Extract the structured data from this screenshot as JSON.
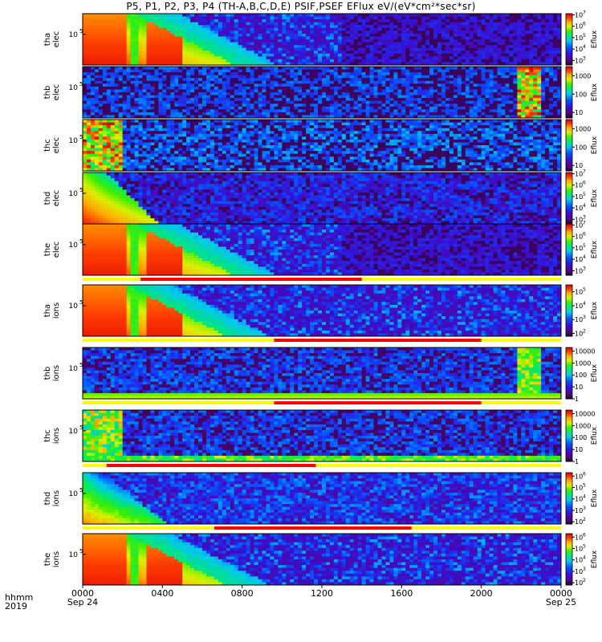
{
  "chart_data": {
    "type": "heatmap",
    "title": "P5, P1, P2, P3, P4 (TH-A,B,C,D,E) PSIF,PSEF EFlux eV/(eV*cm²*sec*sr)",
    "x_ticks": [
      {
        "label": "0000",
        "date": "Sep 24",
        "hour": 0
      },
      {
        "label": "0400",
        "date": "",
        "hour": 4
      },
      {
        "label": "0800",
        "date": "",
        "hour": 8
      },
      {
        "label": "1200",
        "date": "",
        "hour": 12
      },
      {
        "label": "1600",
        "date": "",
        "hour": 16
      },
      {
        "label": "2000",
        "date": "",
        "hour": 20
      },
      {
        "label": "0000",
        "date": "Sep 25",
        "hour": 24
      }
    ],
    "x_range_hours": [
      0,
      24
    ],
    "footer": {
      "hhmm": "hhmm",
      "year": "2019"
    },
    "colorbar_label": "Eflux",
    "panels": [
      {
        "probe": "tha",
        "species": "elec",
        "ytick": "5",
        "cb_ticks": [
          "3",
          "4",
          "5",
          "6",
          "7"
        ],
        "cb_range": [
          2.6,
          7.1
        ],
        "profile": "elec_full"
      },
      {
        "probe": "thb",
        "species": "elec",
        "ytick": "5",
        "cb_ticks": [
          "10",
          "100",
          "1000"
        ],
        "cb_range": [
          0.7,
          3.5
        ],
        "profile": "sparse_b"
      },
      {
        "probe": "thc",
        "species": "elec",
        "ytick": "5",
        "cb_ticks": [
          "10",
          "100",
          "1000"
        ],
        "cb_range": [
          0.7,
          3.5
        ],
        "profile": "sparse_c"
      },
      {
        "probe": "thd",
        "species": "elec",
        "ytick": "5",
        "cb_ticks": [
          "3",
          "4",
          "5",
          "6",
          "7"
        ],
        "cb_range": [
          2.6,
          7.1
        ],
        "profile": "elec_d"
      },
      {
        "probe": "the",
        "species": "elec",
        "ytick": "5",
        "cb_ticks": [
          "3",
          "4",
          "5",
          "6",
          "7"
        ],
        "cb_range": [
          2.6,
          7.1
        ],
        "profile": "elec_full"
      },
      {
        "probe": "tha",
        "species": "ions",
        "ytick": "5",
        "cb_ticks": [
          "2",
          "3",
          "4",
          "5"
        ],
        "cb_range": [
          1.8,
          5.5
        ],
        "profile": "ion_full"
      },
      {
        "probe": "thb",
        "species": "ions",
        "ytick": "5",
        "cb_ticks": [
          "1",
          "10",
          "100",
          "1000",
          "10000"
        ],
        "cb_range": [
          0,
          4.3
        ],
        "profile": "ion_b"
      },
      {
        "probe": "thc",
        "species": "ions",
        "ytick": "5",
        "cb_ticks": [
          "1",
          "10",
          "100",
          "1000",
          "10000"
        ],
        "cb_range": [
          0,
          4.3
        ],
        "profile": "ion_c"
      },
      {
        "probe": "thd",
        "species": "ions",
        "ytick": "5",
        "cb_ticks": [
          "2",
          "3",
          "4",
          "5",
          "6"
        ],
        "cb_range": [
          1.8,
          6.3
        ],
        "profile": "ion_d"
      },
      {
        "probe": "the",
        "species": "ions",
        "ytick": "5",
        "cb_ticks": [
          "2",
          "3",
          "4",
          "5",
          "6"
        ],
        "cb_range": [
          1.8,
          6.3
        ],
        "profile": "ion_full"
      }
    ],
    "mode_bars": [
      {
        "after_panel": 4,
        "segments": [
          {
            "start": 0,
            "end": 2.9,
            "color": "#ffff00"
          },
          {
            "start": 2.9,
            "end": 14,
            "color": "#ff0000"
          },
          {
            "start": 14,
            "end": 24,
            "color": "#ffff00"
          }
        ]
      },
      {
        "after_panel": 5,
        "segments": [
          {
            "start": 0,
            "end": 9.6,
            "color": "#ffff00"
          },
          {
            "start": 9.6,
            "end": 20.0,
            "color": "#ff0000"
          },
          {
            "start": 20.0,
            "end": 24,
            "color": "#ffff00"
          }
        ]
      },
      {
        "after_panel": 6,
        "segments": [
          {
            "start": 0,
            "end": 9.6,
            "color": "#ffff00"
          },
          {
            "start": 9.6,
            "end": 20.0,
            "color": "#ff0000"
          },
          {
            "start": 20.0,
            "end": 24,
            "color": "#ffff00"
          }
        ]
      },
      {
        "after_panel": 7,
        "segments": [
          {
            "start": 0,
            "end": 1.2,
            "color": "#ffff00"
          },
          {
            "start": 1.2,
            "end": 11.7,
            "color": "#ff0000"
          },
          {
            "start": 11.7,
            "end": 24,
            "color": "#ffff00"
          }
        ]
      },
      {
        "after_panel": 8,
        "segments": [
          {
            "start": 0,
            "end": 6.6,
            "color": "#ffff00"
          },
          {
            "start": 6.6,
            "end": 16.5,
            "color": "#ff0000"
          },
          {
            "start": 16.5,
            "end": 24,
            "color": "#ffff00"
          }
        ]
      }
    ]
  }
}
